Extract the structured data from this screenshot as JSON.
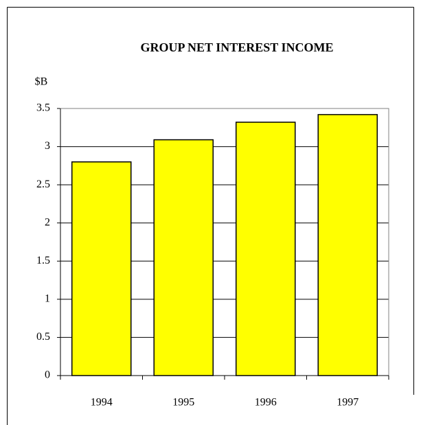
{
  "chart_data": {
    "type": "bar",
    "title": "GROUP NET INTEREST INCOME",
    "y_label": "$B",
    "categories": [
      "1994",
      "1995",
      "1996",
      "1997"
    ],
    "values": [
      2.8,
      3.09,
      3.32,
      3.42
    ],
    "color": "#ffff00",
    "ylim": [
      0,
      3.5
    ],
    "yticks": [
      0,
      0.5,
      1,
      1.5,
      2,
      2.5,
      3,
      3.5
    ],
    "grid": true
  }
}
